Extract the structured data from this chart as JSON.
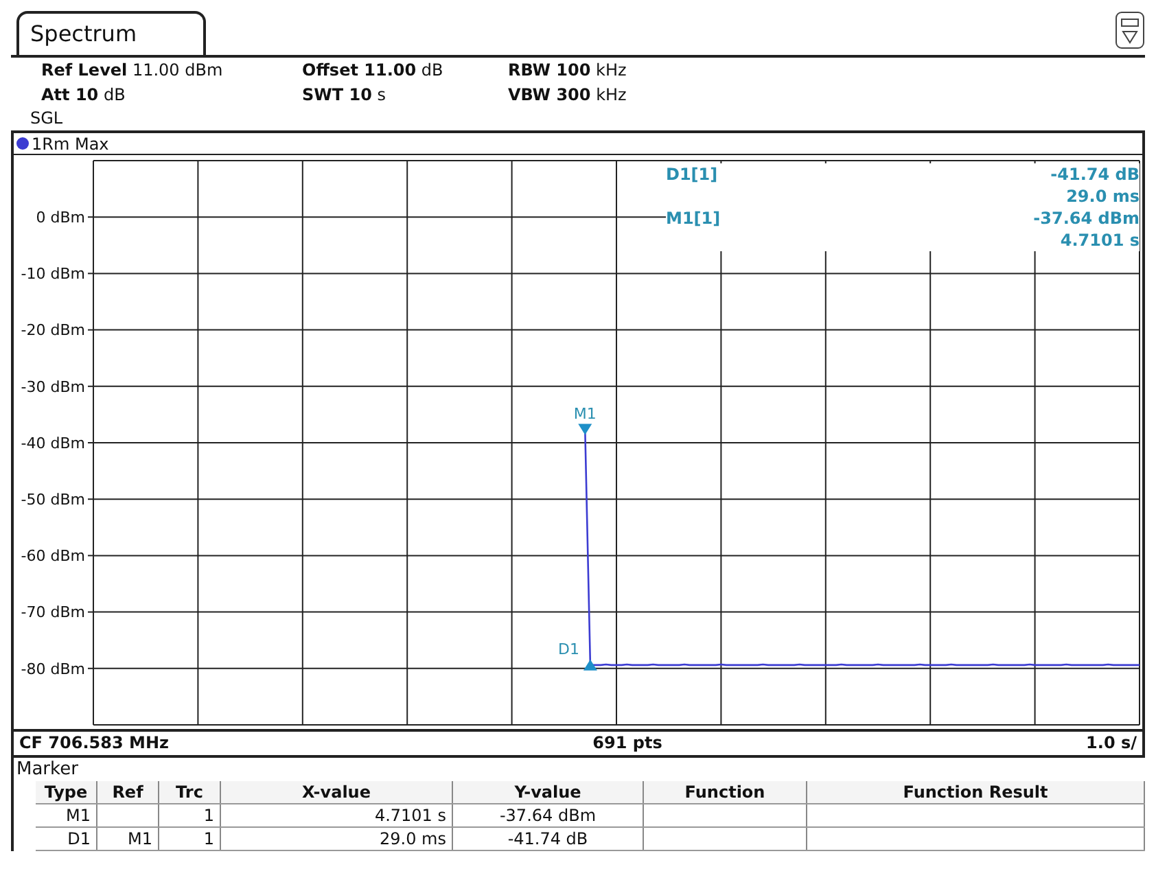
{
  "chart_data": {
    "type": "line",
    "title": "Spectrum",
    "categories": [
      null,
      null,
      null,
      null,
      null,
      null,
      null,
      null,
      null,
      null,
      null,
      null,
      null,
      null,
      null,
      null,
      null,
      null,
      null,
      null,
      null,
      null,
      null,
      null,
      null,
      null,
      null,
      null,
      null,
      null,
      null,
      null,
      null,
      null,
      null,
      null,
      null,
      null,
      null,
      null,
      null,
      null,
      null,
      null,
      null,
      null,
      null,
      null,
      null,
      null,
      null,
      null,
      null,
      null,
      null,
      null,
      null,
      null,
      null,
      null,
      null,
      null,
      null,
      null,
      null,
      null,
      null,
      null,
      null,
      null,
      null,
      null,
      null,
      null,
      null,
      null,
      null,
      null,
      null,
      null,
      null,
      null,
      null,
      null,
      null,
      null,
      null,
      null,
      null,
      null,
      null,
      null,
      null,
      null,
      null,
      null,
      null,
      null,
      null,
      null,
      null,
      null,
      null,
      null,
      null,
      null,
      null,
      null,
      null,
      null,
      null,
      null,
      null,
      null,
      null,
      null,
      null,
      null,
      null,
      null,
      null,
      null,
      null,
      null,
      null,
      null,
      null,
      null,
      null,
      null,
      null,
      null,
      null,
      null,
      null,
      null,
      null,
      null,
      null,
      null,
      null,
      null,
      null,
      null,
      null,
      null,
      null,
      null,
      null,
      null,
      null,
      null,
      null,
      null,
      null,
      null,
      null,
      null,
      null,
      null,
      null,
      null,
      null,
      null,
      null,
      null,
      null,
      null,
      null,
      null,
      null,
      null,
      null,
      null,
      null,
      null,
      null,
      null,
      null,
      null,
      null,
      null,
      null,
      null,
      null,
      null,
      null,
      null,
      null,
      null,
      null,
      null,
      null,
      null,
      null,
      null,
      null,
      null,
      null,
      null,
      null
    ],
    "series": [
      {
        "name": "1Rm Max",
        "color": "#3c3cd2",
        "values": [
          null,
          null,
          null,
          null,
          null,
          null,
          null,
          null,
          null,
          null,
          null,
          null,
          null,
          null,
          null,
          null,
          null,
          null,
          null,
          null,
          null,
          null,
          null,
          null,
          null,
          null,
          null,
          null,
          null,
          null,
          null,
          null,
          null,
          null,
          null,
          null,
          null,
          null,
          null,
          null,
          null,
          null,
          null,
          null,
          null,
          null,
          null,
          null,
          null,
          null,
          null,
          null,
          null,
          null,
          null,
          null,
          null,
          null,
          null,
          null,
          null,
          null,
          null,
          null,
          null,
          null,
          null,
          null,
          null,
          null,
          null,
          null,
          null,
          null,
          null,
          null,
          null,
          null,
          null,
          null,
          null,
          null,
          null,
          null,
          null,
          null,
          null,
          null,
          null,
          null,
          null,
          null,
          null,
          null,
          -37.6,
          -79.4,
          -79.4,
          -79.4,
          -79.3,
          -79.4,
          -79.4,
          -79.4,
          -79.3,
          -79.4,
          -79.4,
          -79.4,
          -79.4,
          -79.3,
          -79.4,
          -79.4,
          -79.4,
          -79.4,
          -79.4,
          -79.3,
          -79.4,
          -79.4,
          -79.4,
          -79.4,
          -79.4,
          -79.4,
          -79.3,
          -79.4,
          -79.4,
          -79.4,
          -79.4,
          -79.4,
          -79.4,
          -79.4,
          -79.3,
          -79.4,
          -79.4,
          -79.4,
          -79.4,
          -79.4,
          -79.4,
          -79.3,
          -79.4,
          -79.4,
          -79.4,
          -79.4,
          -79.4,
          -79.4,
          -79.4,
          -79.3,
          -79.4,
          -79.4,
          -79.4,
          -79.4,
          -79.4,
          -79.4,
          -79.3,
          -79.4,
          -79.4,
          -79.4,
          -79.4,
          -79.4,
          -79.4,
          -79.4,
          -79.3,
          -79.4,
          -79.4,
          -79.4,
          -79.4,
          -79.4,
          -79.3,
          -79.4,
          -79.4,
          -79.4,
          -79.4,
          -79.4,
          -79.4,
          -79.4,
          -79.3,
          -79.4,
          -79.4,
          -79.4,
          -79.4,
          -79.4,
          -79.4,
          -79.3,
          -79.4,
          -79.4,
          -79.4,
          -79.4,
          -79.4,
          -79.4,
          -79.3,
          -79.4,
          -79.4,
          -79.4,
          -79.4,
          -79.4,
          -79.4,
          -79.4,
          -79.3,
          -79.4,
          -79.4,
          -79.4,
          -79.4,
          -79.4,
          -79.4
        ]
      }
    ],
    "ylim": [
      -90,
      10
    ],
    "yticks": [
      {
        "value": -80,
        "label": "-80 dBm"
      },
      {
        "value": -70,
        "label": "-70 dBm"
      },
      {
        "value": -60,
        "label": "-60 dBm"
      },
      {
        "value": -50,
        "label": "-50 dBm"
      },
      {
        "value": -40,
        "label": "-40 dBm"
      },
      {
        "value": -30,
        "label": "-30 dBm"
      },
      {
        "value": -20,
        "label": "-20 dBm"
      },
      {
        "value": -10,
        "label": "-10 dBm"
      },
      {
        "value": 0,
        "label": "0 dBm"
      }
    ],
    "tick_labels": "y",
    "grid": true,
    "legend": "top left",
    "marker": "none",
    "line_style": "solid",
    "annotations": [
      "Ref Level 11.00 dBm",
      "Offset 11.00 dB",
      "RBW 100 kHz",
      "Att 10 dB",
      "SWT 10 s",
      "VBW 300 kHz",
      "SGL",
      "D1[1]",
      "-41.74 dB",
      "29.0 ms",
      "M1[1]",
      "-37.64 dBm",
      "4.7101 s",
      "CF 706.583 MHz",
      "691 pts",
      "1.0 s/",
      "Marker",
      "Type",
      "Ref",
      "Trc",
      "X-value",
      "Y-value",
      "Function",
      "Function Result",
      "M1",
      "1",
      "4.7101 s",
      "-37.64 dBm",
      "D1",
      "M1",
      "1",
      "29.0 ms",
      "-41.74 dB",
      "D1",
      {
        "text": "M1",
        "y": -37.64
      }
    ]
  }
}
